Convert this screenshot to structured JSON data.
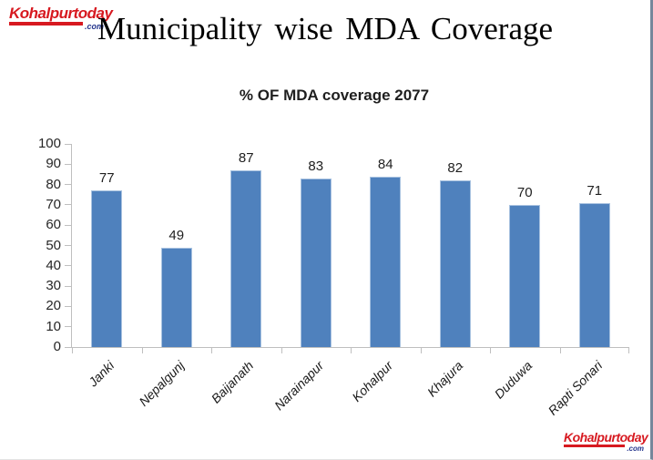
{
  "page": {
    "title": "Municipality wise MDA Coverage"
  },
  "logo": {
    "name": "Kohalpurtoday",
    "domain": ".com"
  },
  "chart_data": {
    "type": "bar",
    "title": "% OF MDA coverage 2077",
    "categories": [
      "Janki",
      "Nepalgunj",
      "Baijanath",
      "Narainapur",
      "Kohalpur",
      "Khajura",
      "Duduwa",
      "Rapti Sonari"
    ],
    "values": [
      77,
      49,
      87,
      83,
      84,
      82,
      70,
      71
    ],
    "xlabel": "",
    "ylabel": "",
    "ylim": [
      0,
      100
    ],
    "yticks": [
      0,
      10,
      20,
      30,
      40,
      50,
      60,
      70,
      80,
      90,
      100
    ],
    "grid": false,
    "legend": false,
    "bar_color": "#4F81BD",
    "bar_border_color": "#A8C2E0",
    "axis_color": "#BFBFBF",
    "label_color": "#1F1F1F"
  },
  "colors": {
    "slide_border_right": "#76879B",
    "logo_red": "#D71920",
    "logo_blue": "#23338C"
  }
}
